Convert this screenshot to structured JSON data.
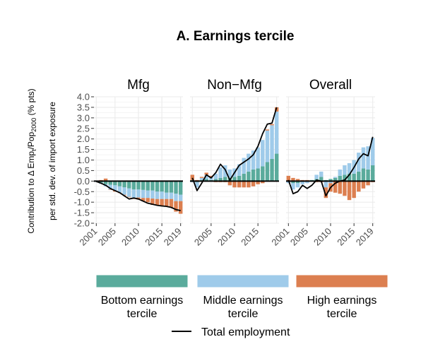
{
  "chart_data": {
    "type": "bar",
    "title": "A. Earnings tercile",
    "ylabel_line1": "Contribution to Δ Emp_t/Pop_2000 (% pts)",
    "ylabel_line2": "per std. dev. of import exposure",
    "ylim": [
      -2.0,
      4.0
    ],
    "yticks": [
      "4.0",
      "3.5",
      "3.0",
      "2.5",
      "2.0",
      "1.5",
      "1.0",
      "0.5",
      "0.0",
      "-0.5",
      "-1.0",
      "-1.5",
      "-2.0"
    ],
    "years": [
      2001,
      2002,
      2003,
      2004,
      2005,
      2006,
      2007,
      2008,
      2009,
      2010,
      2011,
      2012,
      2013,
      2014,
      2015,
      2016,
      2017,
      2018,
      2019
    ],
    "grid": true,
    "legend_position": "bottom",
    "colors": {
      "bottom": "#5aab9c",
      "middle": "#9fcbea",
      "high": "#dc7f50",
      "total": "#000000",
      "grid": "#ebebeb"
    },
    "legend": [
      {
        "key": "bottom",
        "line1": "Bottom earnings",
        "line2": "tercile"
      },
      {
        "key": "middle",
        "line1": "Middle earnings",
        "line2": "tercile"
      },
      {
        "key": "high",
        "line1": "High earnings",
        "line2": "tercile"
      },
      {
        "key": "total",
        "line1": "Total employment",
        "line2": ""
      }
    ],
    "panels": [
      {
        "name": "Mfg",
        "xticks": [
          "2001",
          "2005",
          "2010",
          "2015",
          "2019"
        ],
        "bottom": [
          -0.02,
          -0.08,
          -0.15,
          -0.18,
          -0.2,
          -0.25,
          -0.3,
          -0.35,
          -0.4,
          -0.4,
          -0.42,
          -0.45,
          -0.45,
          -0.5,
          -0.5,
          -0.55,
          -0.55,
          -0.6,
          -0.65
        ],
        "middle": [
          -0.02,
          -0.05,
          -0.1,
          -0.22,
          -0.25,
          -0.3,
          -0.35,
          -0.4,
          -0.4,
          -0.38,
          -0.38,
          -0.35,
          -0.38,
          -0.35,
          -0.35,
          -0.3,
          -0.3,
          -0.35,
          -0.3
        ],
        "high": [
          0,
          0.05,
          0.12,
          -0.02,
          -0.05,
          -0.02,
          -0.03,
          -0.02,
          -0.05,
          -0.1,
          -0.15,
          -0.2,
          -0.3,
          -0.3,
          -0.35,
          -0.35,
          -0.4,
          -0.5,
          -0.6
        ],
        "total": [
          -0.02,
          -0.1,
          -0.2,
          -0.35,
          -0.45,
          -0.55,
          -0.7,
          -0.85,
          -0.8,
          -0.85,
          -0.95,
          -1.05,
          -1.1,
          -1.15,
          -1.18,
          -1.2,
          -1.25,
          -1.35,
          -1.4
        ]
      },
      {
        "name": "Non−Mfg",
        "xticks": [
          "2005",
          "2010",
          "2015"
        ],
        "bottom": [
          0.05,
          -0.05,
          0.05,
          0.1,
          0.05,
          0.1,
          0.15,
          0.2,
          0.15,
          0.2,
          0.25,
          0.35,
          0.45,
          0.55,
          0.6,
          0.7,
          0.9,
          1.05,
          1.3
        ],
        "middle": [
          -0.05,
          -0.25,
          0.1,
          0.2,
          0.15,
          0.25,
          0.5,
          0.55,
          0.4,
          0.4,
          0.55,
          0.75,
          0.85,
          0.9,
          1.0,
          1.25,
          1.5,
          1.6,
          2.0
        ],
        "high": [
          0.25,
          0.05,
          0.05,
          0.1,
          0.05,
          -0.05,
          -0.05,
          -0.05,
          -0.2,
          -0.3,
          -0.3,
          -0.3,
          -0.3,
          -0.25,
          -0.15,
          -0.1,
          0.05,
          0.05,
          0.2
        ],
        "total": [
          0.15,
          -0.45,
          -0.1,
          0.3,
          0.15,
          0.4,
          0.8,
          0.55,
          0.05,
          0.4,
          0.75,
          0.9,
          1.05,
          1.25,
          1.65,
          2.25,
          2.7,
          2.75,
          3.5
        ]
      },
      {
        "name": "Overall",
        "xticks": [
          "2001",
          "2005",
          "2010",
          "2015",
          "2019"
        ],
        "bottom": [
          0.0,
          -0.1,
          -0.1,
          0.0,
          0.0,
          0.05,
          0.1,
          0.2,
          0.05,
          0.1,
          0.15,
          0.25,
          0.3,
          0.35,
          0.35,
          0.45,
          0.6,
          0.55,
          0.75
        ],
        "middle": [
          -0.1,
          -0.3,
          -0.2,
          -0.15,
          -0.1,
          0.0,
          0.2,
          0.25,
          -0.3,
          -0.1,
          0.05,
          0.3,
          0.45,
          0.5,
          0.65,
          0.9,
          1.0,
          1.1,
          1.3
        ],
        "high": [
          0.25,
          0.15,
          0.1,
          0.05,
          0.05,
          0.0,
          -0.05,
          -0.05,
          -0.5,
          -0.4,
          -0.55,
          -0.6,
          -0.7,
          -0.9,
          -0.8,
          -0.5,
          -0.35,
          -0.2,
          -0.05
        ],
        "total": [
          0.05,
          -0.6,
          -0.5,
          -0.2,
          -0.35,
          -0.2,
          0.05,
          0.0,
          -0.7,
          -0.3,
          -0.1,
          0.0,
          0.05,
          0.3,
          0.65,
          1.05,
          1.3,
          1.2,
          2.1
        ]
      }
    ]
  }
}
